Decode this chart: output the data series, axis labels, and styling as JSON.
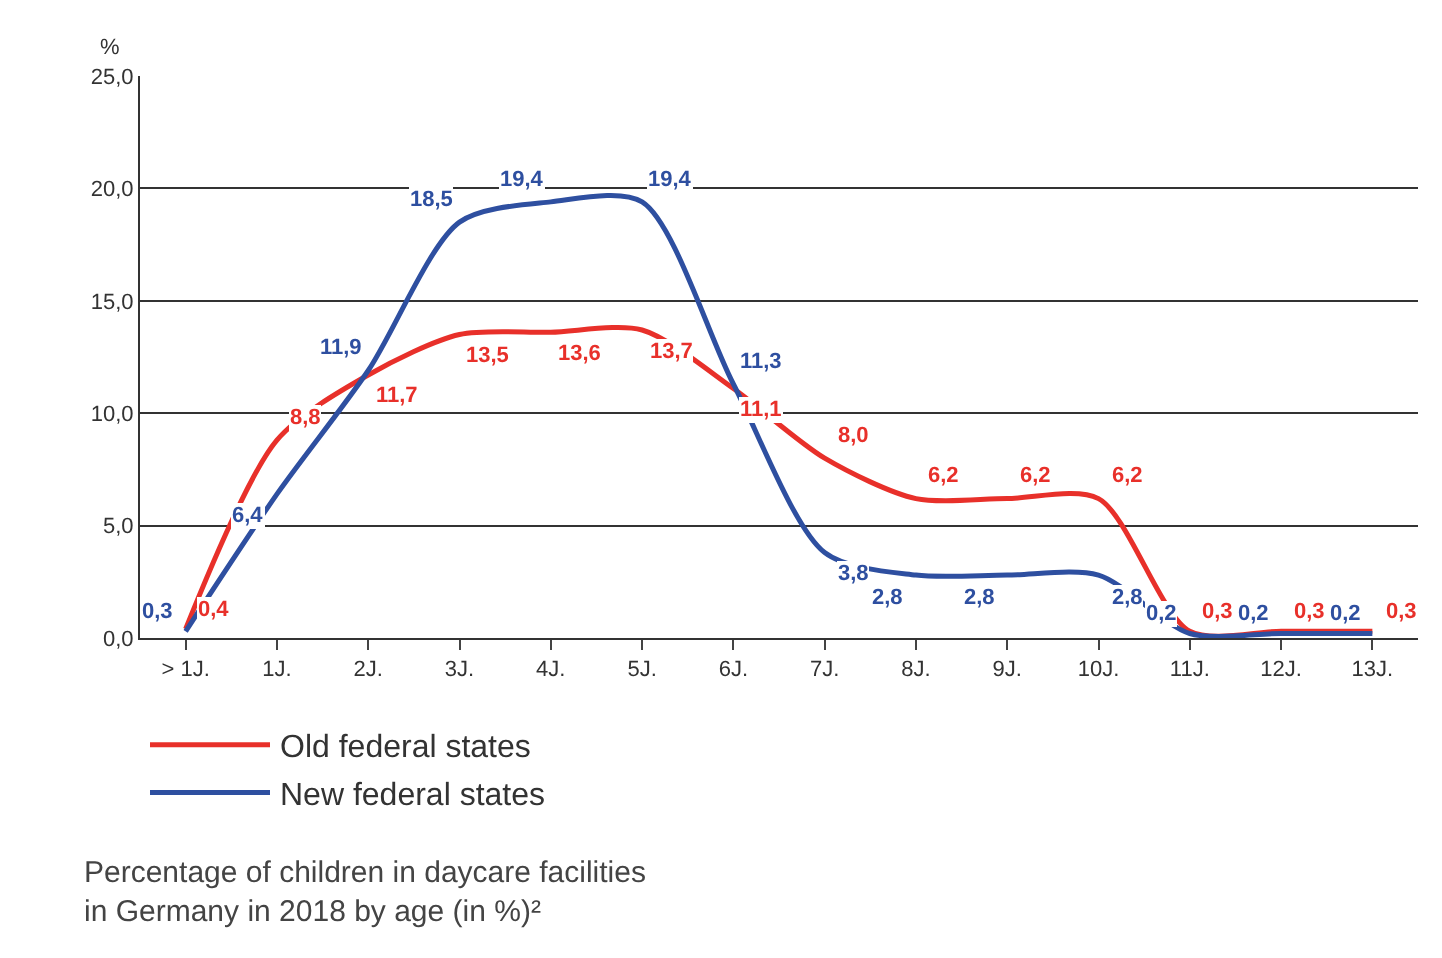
{
  "chart_data": {
    "type": "line",
    "ylabel": "%",
    "categories": [
      "> 1J.",
      "1J.",
      "2J.",
      "3J.",
      "4J.",
      "5J.",
      "6J.",
      "7J.",
      "8J.",
      "9J.",
      "10J.",
      "11J.",
      "12J.",
      "13J."
    ],
    "series": [
      {
        "name": "Old federal states",
        "color": "#e8302a",
        "values": [
          0.4,
          8.8,
          11.7,
          13.5,
          13.6,
          13.7,
          11.1,
          8.0,
          6.2,
          6.2,
          6.2,
          0.3,
          0.3,
          0.3
        ],
        "value_labels": [
          "0,4",
          "8,8",
          "11,7",
          "13,5",
          "13,6",
          "13,7",
          "11,1",
          "8,0",
          "6,2",
          "6,2",
          "6,2",
          "0,3",
          "0,3",
          "0,3"
        ]
      },
      {
        "name": "New federal states",
        "color": "#2e4fa0",
        "values": [
          0.3,
          6.4,
          11.9,
          18.5,
          19.4,
          19.4,
          11.3,
          3.8,
          2.8,
          2.8,
          2.8,
          0.2,
          0.2,
          0.2
        ],
        "value_labels": [
          "0,3",
          "6,4",
          "11,9",
          "18,5",
          "19,4",
          "19,4",
          "11,3",
          "3,8",
          "2,8",
          "2,8",
          "2,8",
          "0,2",
          "0,2",
          "0,2"
        ]
      }
    ],
    "ylim": [
      0,
      25
    ],
    "yticks": [
      {
        "value": 0,
        "label": "0,0"
      },
      {
        "value": 5,
        "label": "5,0"
      },
      {
        "value": 10,
        "label": "10,0"
      },
      {
        "value": 15,
        "label": "15,0"
      },
      {
        "value": 20,
        "label": "20,0"
      },
      {
        "value": 25,
        "label": "25,0"
      }
    ],
    "grid": "y",
    "legend": "bottom",
    "marker": "none",
    "line_style": "solid",
    "annotations": [
      "Percentage of children in daycare facilities\nin Germany in 2018 by age (in %)²"
    ]
  }
}
